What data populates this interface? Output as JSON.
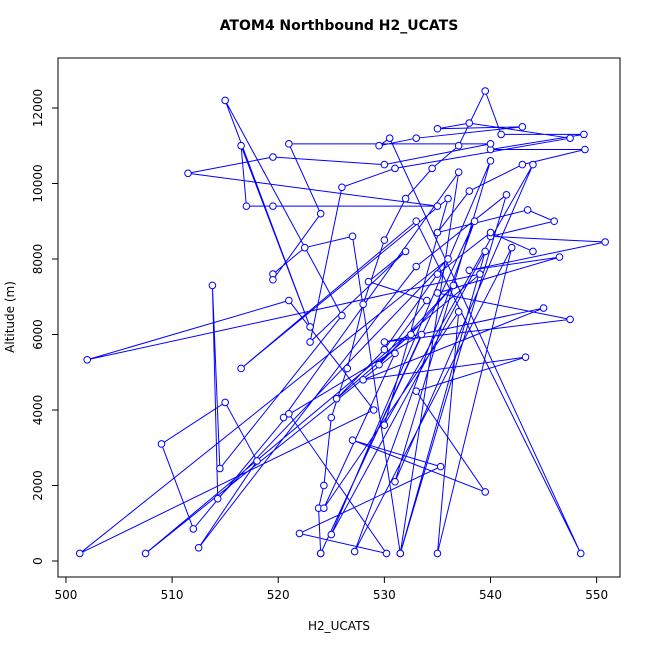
{
  "chart_data": {
    "type": "line",
    "title": "ATOM4 Northbound H2_UCATS",
    "x_label": "H2_UCATS",
    "y_label": "Altitude (m)",
    "color": "#0000ff",
    "markers": true,
    "grid": false,
    "xlim": [
      499.25,
      552.2
    ],
    "ylim": [
      -424,
      13324
    ],
    "xticks": [
      500,
      510,
      520,
      530,
      540,
      550
    ],
    "yticks": [
      0,
      2000,
      4000,
      6000,
      8000,
      10000,
      12000
    ],
    "x": [
      524.0,
      523.8,
      524.3,
      525.0,
      526.5,
      528.0,
      530.0,
      532.0,
      534.5,
      537.0,
      539.5,
      541.0,
      548.8,
      540.0,
      548.9,
      543.0,
      538.0,
      535.0,
      543.5,
      546.0,
      540.0,
      550.8,
      538.0,
      546.5,
      535.0,
      547.5,
      530.0,
      545.0,
      528.0,
      543.3,
      533.0,
      539.5,
      527.0,
      535.3,
      522.0,
      530.2,
      521.0,
      512.0,
      509.0,
      515.0,
      518.0,
      512.5,
      533.0,
      541.5,
      531.5,
      527.0,
      522.5,
      519.5,
      519.5,
      524.0,
      521.0,
      540.0,
      530.0,
      519.5,
      511.5,
      535.0,
      519.5,
      517.0,
      516.5,
      523.0,
      515.0,
      526.0,
      514.5,
      513.8,
      514.3,
      536.0,
      501.3,
      529.0,
      521.0,
      502.0,
      539.0,
      507.5,
      531.0,
      524.3,
      537.0,
      535.0,
      542.0,
      527.2,
      538.5,
      524.0,
      533.5,
      520.5,
      537.0,
      531.5,
      539.5,
      525.0,
      540.0,
      531.0,
      544.0,
      530.0,
      536.0,
      516.5,
      533.0,
      548.5,
      530.5,
      529.5,
      533.0,
      543.0,
      535.0,
      538.0,
      547.5,
      531.0,
      526.0,
      523.0,
      532.0,
      528.5,
      534.0,
      529.5,
      536.5,
      532.5,
      525.5,
      530.0,
      535.0,
      540.0,
      544.0
    ],
    "values": [
      200,
      1400,
      2000,
      3800,
      5100,
      6800,
      8500,
      9600,
      10400,
      11000,
      12450,
      11300,
      11300,
      10900,
      10900,
      10500,
      9800,
      8700,
      9300,
      9000,
      8600,
      8450,
      7700,
      8050,
      7100,
      6400,
      5800,
      6700,
      4800,
      5400,
      4500,
      1830,
      3200,
      2500,
      730,
      200,
      3900,
      850,
      3100,
      4200,
      2650,
      350,
      7800,
      9700,
      200,
      8600,
      8300,
      7600,
      7450,
      9200,
      11050,
      11050,
      10500,
      10700,
      10270,
      9400,
      9400,
      9400,
      11000,
      6200,
      12200,
      6500,
      2450,
      7300,
      1650,
      8000,
      200,
      4000,
      6900,
      5330,
      7600,
      200,
      5500,
      1400,
      6600,
      200,
      8300,
      250,
      9000,
      200,
      6000,
      3800,
      10300,
      200,
      8200,
      700,
      10600,
      2100,
      10500,
      3600,
      9600,
      5100,
      9000,
      200,
      11200,
      11000,
      11200,
      11500,
      11450,
      11600,
      11200,
      10400,
      9900,
      5800,
      8200,
      7400,
      6900,
      5200,
      7300,
      6000,
      4300,
      5600,
      7600,
      8700,
      8200
    ]
  }
}
